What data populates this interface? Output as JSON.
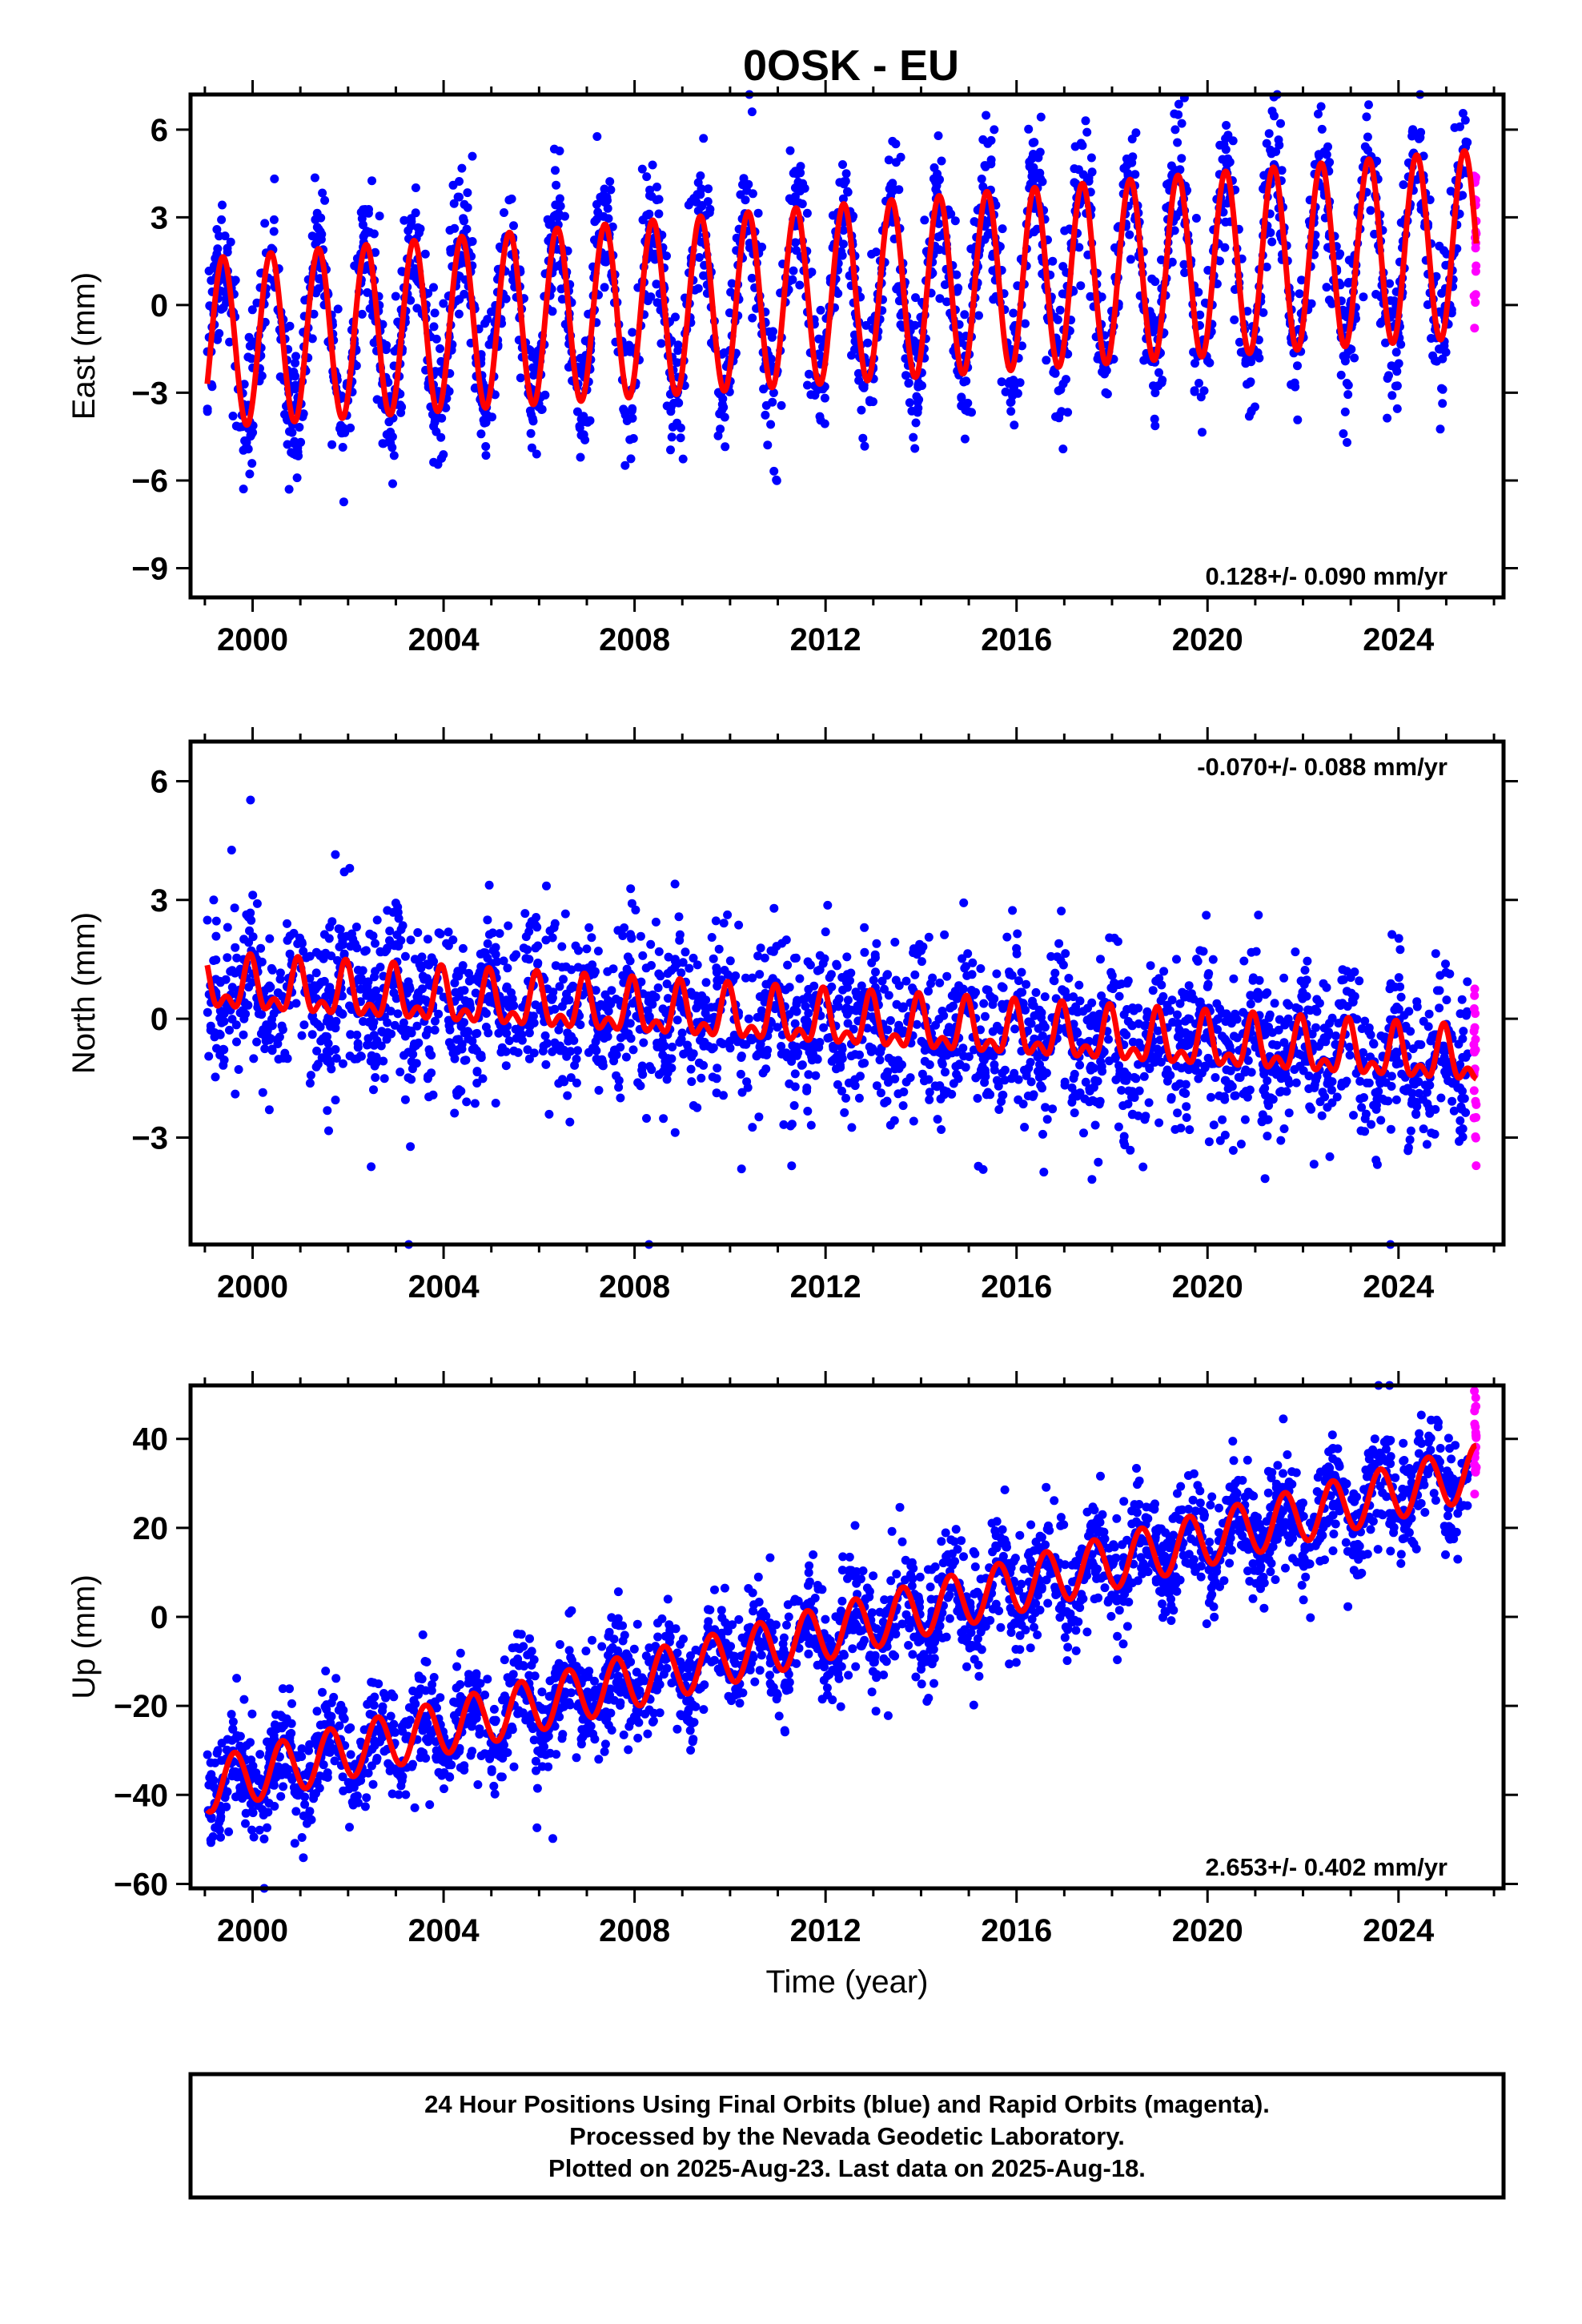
{
  "title": "0OSK - EU",
  "colors": {
    "final_points": "#0000ff",
    "rapid_points": "#ff00ff",
    "model_line": "#ff0000",
    "frame": "#000000"
  },
  "chart_data": [
    {
      "id": "east",
      "type": "scatter",
      "ylabel": "East (mm)",
      "xlabel": "",
      "xlim": [
        1998.7,
        2026.2
      ],
      "ylim": [
        -10,
        7.2
      ],
      "xticks": [
        2000,
        2004,
        2008,
        2012,
        2016,
        2020,
        2024
      ],
      "xtick_labels": [
        "2000",
        "2004",
        "2008",
        "2012",
        "2016",
        "2020",
        "2024"
      ],
      "yticks": [
        -9,
        -6,
        -3,
        0,
        3,
        6
      ],
      "ytick_labels": [
        "−9",
        "−6",
        "−3",
        "0",
        "3",
        "6"
      ],
      "rate_label": "0.128+/- 0.090 mm/yr",
      "rate_position": "bottom-right",
      "data_span": [
        1999.05,
        2025.45
      ],
      "rapid_span": [
        2025.45,
        2025.63
      ],
      "model": {
        "offset": -1.3,
        "trend": 0.128,
        "annual_amp_start": 2.9,
        "annual_amp_end": 3.2,
        "annual_phase_peak": 0.38,
        "semiannual_amp": 0.0
      },
      "scatter_sd": 1.2,
      "series": [
        {
          "name": "Final Orbits (blue)"
        },
        {
          "name": "Rapid Orbits (magenta)"
        }
      ]
    },
    {
      "id": "north",
      "type": "scatter",
      "ylabel": "North (mm)",
      "xlabel": "",
      "xlim": [
        1998.7,
        2026.2
      ],
      "ylim": [
        -5.7,
        7.0
      ],
      "xticks": [
        2000,
        2004,
        2008,
        2012,
        2016,
        2020,
        2024
      ],
      "xtick_labels": [
        "2000",
        "2004",
        "2008",
        "2012",
        "2016",
        "2020",
        "2024"
      ],
      "yticks": [
        -3,
        0,
        3,
        6
      ],
      "ytick_labels": [
        "−3",
        "0",
        "3",
        "6"
      ],
      "rate_label": "-0.070+/- 0.088 mm/yr",
      "rate_position": "top-right",
      "data_span": [
        1999.05,
        2025.45
      ],
      "rapid_span": [
        2025.45,
        2025.63
      ],
      "model": {
        "offset": 0.8,
        "trend": -0.07,
        "annual_amp_start": 0.55,
        "annual_amp_end": 0.55,
        "annual_phase_peak": 0.95,
        "semiannual_amp": 0.35
      },
      "scatter_sd": 1.0,
      "series": [
        {
          "name": "Final Orbits (blue)"
        },
        {
          "name": "Rapid Orbits (magenta)"
        }
      ]
    },
    {
      "id": "up",
      "type": "scatter",
      "ylabel": "Up (mm)",
      "xlabel": "Time (year)",
      "xlim": [
        1998.7,
        2026.2
      ],
      "ylim": [
        -61,
        52
      ],
      "xticks": [
        2000,
        2004,
        2008,
        2012,
        2016,
        2020,
        2024
      ],
      "xtick_labels": [
        "2000",
        "2004",
        "2008",
        "2012",
        "2016",
        "2020",
        "2024"
      ],
      "yticks": [
        -60,
        -40,
        -20,
        0,
        20,
        40
      ],
      "ytick_labels": [
        "−60",
        "−40",
        "−20",
        "0",
        "20",
        "40"
      ],
      "rate_label": "2.653+/- 0.402 mm/yr",
      "rate_position": "bottom-right",
      "data_span": [
        1999.05,
        2025.45
      ],
      "rapid_span": [
        2025.45,
        2025.63
      ],
      "model": {
        "offset": -38,
        "trend": 2.653,
        "annual_amp_start": 6.0,
        "annual_amp_end": 6.0,
        "annual_phase_peak": 0.62,
        "semiannual_amp": 0.0
      },
      "scatter_sd": 6.0,
      "series": [
        {
          "name": "Final Orbits (blue)"
        },
        {
          "name": "Rapid Orbits (magenta)"
        }
      ]
    }
  ],
  "footer": {
    "line1": "24 Hour Positions Using Final Orbits (blue) and Rapid Orbits (magenta).",
    "line2": "Processed by the Nevada Geodetic Laboratory.",
    "line3": "Plotted on 2025-Aug-23. Last data on 2025-Aug-18."
  }
}
